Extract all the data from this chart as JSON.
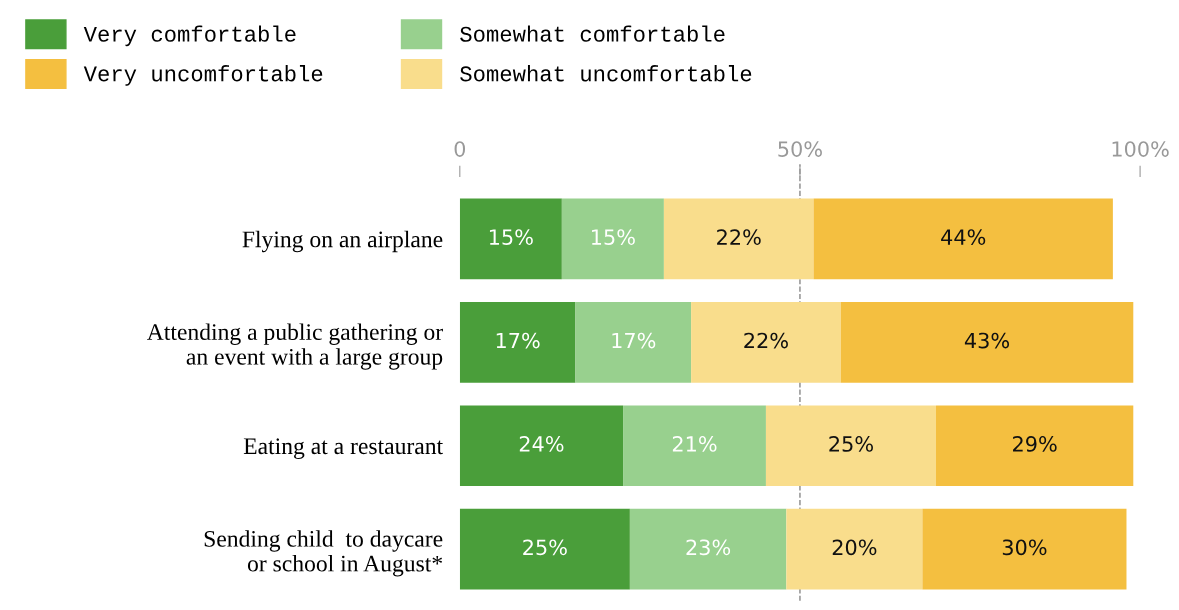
{
  "chart_data": {
    "type": "bar",
    "orientation": "horizontal",
    "stacked": true,
    "categories": [
      "Flying on an airplane",
      "Attending a public gathering or\nan event with a large group",
      "Eating at a restaurant",
      "Sending child  to daycare\nor school in August*"
    ],
    "series": [
      {
        "name": "Very comfortable",
        "color": "#4a9e3a",
        "values": [
          15,
          17,
          24,
          25
        ],
        "value_labels": [
          "15%",
          "17%",
          "24%",
          "25%"
        ]
      },
      {
        "name": "Somewhat comfortable",
        "color": "#98d08e",
        "values": [
          15,
          17,
          21,
          23
        ],
        "value_labels": [
          "15%",
          "17%",
          "21%",
          "23%"
        ]
      },
      {
        "name": "Somewhat uncomfortable",
        "color": "#f9dd8c",
        "values": [
          22,
          22,
          25,
          20
        ],
        "value_labels": [
          "22%",
          "22%",
          "25%",
          "20%"
        ]
      },
      {
        "name": "Very uncomfortable",
        "color": "#f4bf40",
        "values": [
          44,
          43,
          29,
          30
        ],
        "value_labels": [
          "44%",
          "43%",
          "29%",
          "30%"
        ]
      }
    ],
    "xlim": [
      0,
      100
    ],
    "xticks": [
      {
        "value": 0,
        "label": "0"
      },
      {
        "value": 50,
        "label": "50%"
      },
      {
        "value": 100,
        "label": "100%"
      }
    ],
    "ref_lines": [
      {
        "axis": "x",
        "value": 50,
        "color": "#888888",
        "line_style": "dashed"
      }
    ],
    "legend": "top left"
  }
}
